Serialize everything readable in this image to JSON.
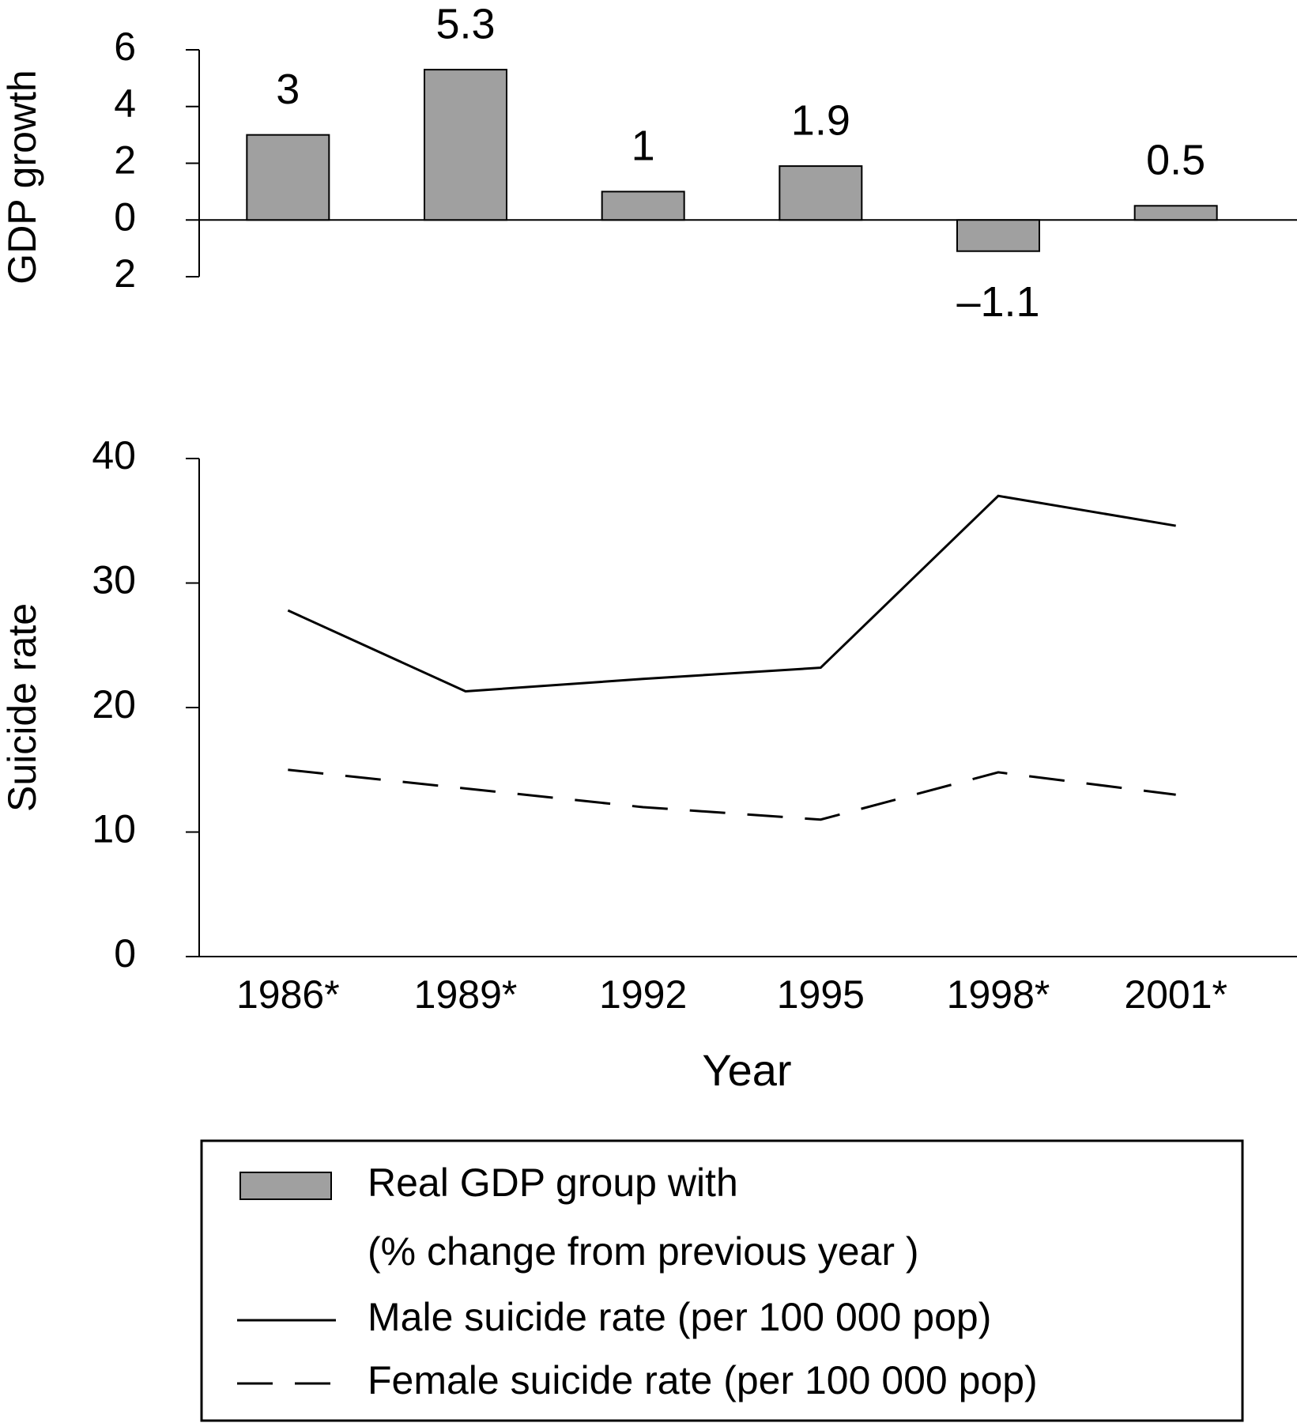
{
  "chart_data": [
    {
      "type": "bar",
      "ylabel": "GDP growth",
      "series": [
        {
          "name": [
            "Real GDP group with",
            "(% change from previous year )"
          ],
          "color": "#a0a0a0",
          "values": [
            3,
            5.3,
            1,
            1.9,
            -1.1,
            0.5
          ],
          "value_labels": [
            "3",
            "5.3",
            "1",
            "1.9",
            "–1.1",
            "0.5"
          ]
        }
      ],
      "ylim": [
        -2,
        6
      ],
      "yticks": [
        {
          "value": -2,
          "label": "2"
        },
        0,
        2,
        4,
        6
      ]
    },
    {
      "type": "line",
      "xlabel": "Year",
      "ylabel": "Suicide rate",
      "categories": [
        "1986*",
        "1989*",
        "1992",
        "1995",
        "1998*",
        "2001*"
      ],
      "series": [
        {
          "name": "Male suicide rate (per 100 000 pop)",
          "color": "#000000",
          "dash": false,
          "values": [
            27.8,
            21.3,
            22.3,
            23.2,
            37,
            34.6
          ]
        },
        {
          "name": "Female suicide rate (per 100 000 pop)",
          "color": "#000000",
          "dash": true,
          "values": [
            15,
            13.5,
            12,
            11,
            14.8,
            13
          ]
        }
      ],
      "ylim": [
        0,
        40
      ],
      "yticks": [
        0,
        10,
        20,
        30,
        40
      ]
    }
  ]
}
